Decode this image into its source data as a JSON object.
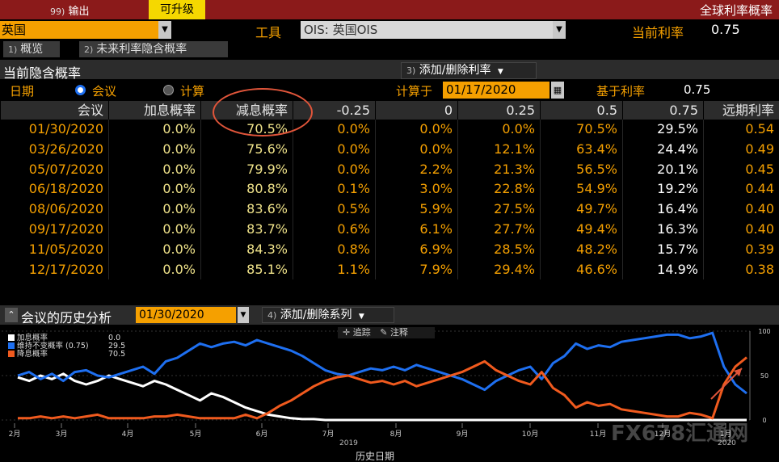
{
  "top_bar": {
    "menu_number": "99)",
    "menu_label": "输出",
    "upgrade_label": "可升级",
    "window_title": "全球利率概率"
  },
  "country": {
    "value": "英国"
  },
  "tool": {
    "label": "工具",
    "value": "OIS: 英国OIS"
  },
  "current_rate": {
    "label": "当前利率",
    "value": "0.75"
  },
  "tabs": [
    {
      "number": "1)",
      "label": "概览"
    },
    {
      "number": "2)",
      "label": "未来利率隐含概率"
    }
  ],
  "section": {
    "title": "当前隐含概率",
    "add_remove_number": "3)",
    "add_remove_label": "添加/删除利率"
  },
  "date_row": {
    "date_label": "日期",
    "radio_meeting": "会议",
    "radio_calc": "计算",
    "calc_on_label": "计算于",
    "calc_date": "01/17/2020",
    "based_rate_label": "基于利率",
    "based_rate_value": "0.75"
  },
  "table": {
    "headers": [
      "会议",
      "加息概率",
      "减息概率",
      "-0.25",
      "0",
      "0.25",
      "0.5",
      "0.75",
      "远期利率"
    ],
    "rows": [
      [
        "01/30/2020",
        "0.0%",
        "70.5%",
        "0.0%",
        "0.0%",
        "0.0%",
        "70.5%",
        "29.5%",
        "0.54"
      ],
      [
        "03/26/2020",
        "0.0%",
        "75.6%",
        "0.0%",
        "0.0%",
        "12.1%",
        "63.4%",
        "24.4%",
        "0.49"
      ],
      [
        "05/07/2020",
        "0.0%",
        "79.9%",
        "0.0%",
        "2.2%",
        "21.3%",
        "56.5%",
        "20.1%",
        "0.45"
      ],
      [
        "06/18/2020",
        "0.0%",
        "80.8%",
        "0.1%",
        "3.0%",
        "22.8%",
        "54.9%",
        "19.2%",
        "0.44"
      ],
      [
        "08/06/2020",
        "0.0%",
        "83.6%",
        "0.5%",
        "5.9%",
        "27.5%",
        "49.7%",
        "16.4%",
        "0.40"
      ],
      [
        "09/17/2020",
        "0.0%",
        "83.7%",
        "0.6%",
        "6.1%",
        "27.7%",
        "49.4%",
        "16.3%",
        "0.40"
      ],
      [
        "11/05/2020",
        "0.0%",
        "84.3%",
        "0.8%",
        "6.9%",
        "28.5%",
        "48.2%",
        "15.7%",
        "0.39"
      ],
      [
        "12/17/2020",
        "0.0%",
        "85.1%",
        "1.1%",
        "7.9%",
        "29.4%",
        "46.6%",
        "14.9%",
        "0.38"
      ]
    ]
  },
  "history": {
    "collapse_icon": "double-chevron-up-icon",
    "title": "会议的历史分析",
    "date": "01/30/2020",
    "series_number": "4)",
    "series_label": "添加/删除系列",
    "track_label": "追踪",
    "annotate_label": "注释"
  },
  "chart_data": {
    "type": "line",
    "xlabel": "历史日期",
    "x_ticks": [
      "2月",
      "3月",
      "4月",
      "5月",
      "6月",
      "7月",
      "8月",
      "9月",
      "10月",
      "11月",
      "12月",
      "1月"
    ],
    "x_year_labels": [
      "2019",
      "2020"
    ],
    "ylim": [
      0,
      100
    ],
    "y_ticks": [
      0,
      50,
      100
    ],
    "legend": [
      {
        "name": "加息概率",
        "value": "0.0",
        "color": "#ffffff"
      },
      {
        "name": "维持不变概率 (0.75)",
        "value": "29.5",
        "color": "#1e6ff0"
      },
      {
        "name": "降息概率",
        "value": "70.5",
        "color": "#f05a1e"
      }
    ],
    "series": [
      {
        "name": "加息概率",
        "color": "#ffffff",
        "values": [
          48,
          44,
          50,
          46,
          52,
          44,
          40,
          44,
          50,
          46,
          42,
          38,
          44,
          40,
          34,
          28,
          22,
          30,
          26,
          20,
          14,
          10,
          6,
          4,
          2,
          1,
          1,
          0,
          0,
          0,
          0,
          0,
          0,
          0,
          0,
          0,
          0,
          0,
          0,
          0,
          0,
          0,
          0,
          0,
          0,
          0,
          0,
          0,
          0,
          0,
          0,
          0,
          0,
          0,
          0,
          0,
          0,
          0,
          0,
          0,
          0,
          0,
          0,
          0,
          0
        ]
      },
      {
        "name": "维持不变概率 (0.75)",
        "color": "#1e6ff0",
        "values": [
          50,
          54,
          46,
          52,
          44,
          54,
          56,
          50,
          48,
          52,
          56,
          60,
          52,
          66,
          70,
          78,
          86,
          82,
          86,
          88,
          84,
          90,
          86,
          82,
          78,
          72,
          64,
          56,
          52,
          50,
          54,
          58,
          56,
          60,
          56,
          62,
          58,
          54,
          50,
          46,
          40,
          34,
          44,
          50,
          56,
          60,
          46,
          64,
          72,
          86,
          80,
          84,
          82,
          88,
          90,
          92,
          94,
          96,
          96,
          92,
          94,
          98,
          60,
          40,
          30
        ]
      },
      {
        "name": "降息概率",
        "color": "#f05a1e",
        "values": [
          2,
          2,
          4,
          2,
          4,
          2,
          4,
          6,
          2,
          2,
          2,
          2,
          4,
          4,
          6,
          4,
          2,
          2,
          2,
          2,
          6,
          2,
          8,
          16,
          22,
          30,
          38,
          44,
          48,
          50,
          46,
          42,
          44,
          40,
          44,
          38,
          42,
          46,
          50,
          54,
          60,
          66,
          56,
          50,
          44,
          40,
          54,
          36,
          28,
          14,
          20,
          16,
          18,
          12,
          10,
          8,
          6,
          4,
          4,
          8,
          6,
          2,
          40,
          60,
          70.5
        ]
      }
    ]
  },
  "watermark": "FX678汇通网"
}
